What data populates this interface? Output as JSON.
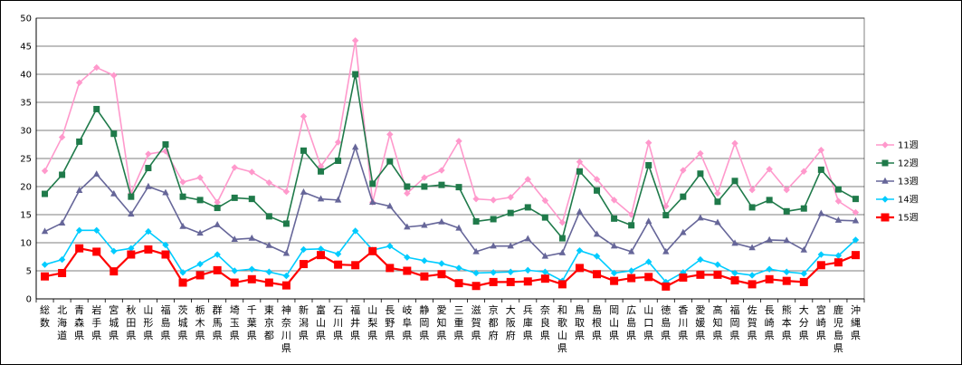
{
  "chart_data": {
    "type": "line",
    "ylim": [
      0,
      50
    ],
    "yticks": [
      0,
      5,
      10,
      15,
      20,
      25,
      30,
      35,
      40,
      45,
      50
    ],
    "grid": "horizontal",
    "legend_position": "right",
    "categories": [
      "総数",
      "北海道",
      "青森県",
      "岩手県",
      "宮城県",
      "秋田県",
      "山形県",
      "福島県",
      "茨城県",
      "栃木県",
      "群馬県",
      "埼玉県",
      "千葉県",
      "東京都",
      "神奈川県",
      "新潟県",
      "富山県",
      "石川県",
      "福井県",
      "山梨県",
      "長野県",
      "岐阜県",
      "静岡県",
      "愛知県",
      "三重県",
      "滋賀県",
      "京都府",
      "大阪府",
      "兵庫県",
      "奈良県",
      "和歌山県",
      "鳥取県",
      "島根県",
      "岡山県",
      "広島県",
      "山口県",
      "徳島県",
      "香川県",
      "愛媛県",
      "高知県",
      "福岡県",
      "佐賀県",
      "長崎県",
      "熊本県",
      "大分県",
      "宮崎県",
      "鹿児島県",
      "沖縄県"
    ],
    "series": [
      {
        "name": "11週",
        "color": "#ff99cc",
        "marker": "diamond",
        "values": [
          22.8,
          28.8,
          38.5,
          41.2,
          39.8,
          18.8,
          25.8,
          26.3,
          20.8,
          21.6,
          17.2,
          23.4,
          22.6,
          20.7,
          19.1,
          32.5,
          23.6,
          27.9,
          46.0,
          17.2,
          29.3,
          18.8,
          21.6,
          22.9,
          28.1,
          17.8,
          17.6,
          18.1,
          21.3,
          17.5,
          13.6,
          24.4,
          21.3,
          17.6,
          15.0,
          27.8,
          16.5,
          22.9,
          25.9,
          18.8,
          27.7,
          19.4,
          23.1,
          19.4,
          22.7,
          26.5,
          17.4,
          15.4
        ]
      },
      {
        "name": "12週",
        "color": "#1f7a4a",
        "marker": "square",
        "values": [
          18.7,
          22.1,
          28.0,
          33.8,
          29.4,
          18.2,
          23.3,
          27.5,
          18.2,
          17.6,
          16.2,
          18.0,
          17.8,
          14.7,
          13.4,
          26.4,
          22.7,
          24.6,
          40.0,
          20.5,
          24.5,
          20.0,
          20.0,
          20.3,
          19.9,
          13.8,
          14.2,
          15.3,
          16.3,
          14.5,
          10.8,
          22.7,
          19.3,
          14.3,
          13.1,
          23.8,
          14.9,
          18.2,
          22.3,
          17.3,
          21.0,
          16.3,
          17.6,
          15.6,
          16.1,
          23.0,
          19.5,
          17.8
        ]
      },
      {
        "name": "13週",
        "color": "#666699",
        "marker": "triangle",
        "values": [
          12.0,
          13.5,
          19.3,
          22.2,
          18.7,
          15.1,
          20.0,
          18.9,
          12.9,
          11.7,
          13.2,
          10.6,
          10.8,
          9.5,
          8.1,
          19.0,
          17.8,
          17.6,
          27.0,
          17.2,
          16.5,
          12.8,
          13.1,
          13.7,
          12.6,
          8.4,
          9.4,
          9.4,
          10.7,
          7.6,
          8.2,
          15.5,
          11.5,
          9.4,
          8.4,
          13.8,
          8.4,
          11.8,
          14.4,
          13.6,
          9.9,
          9.1,
          10.5,
          10.4,
          8.7,
          15.2,
          14.0,
          13.9
        ]
      },
      {
        "name": "14週",
        "color": "#00ccff",
        "marker": "diamond",
        "values": [
          6.1,
          7.0,
          12.2,
          12.2,
          8.5,
          9.0,
          12.0,
          9.6,
          4.7,
          6.2,
          7.9,
          5.0,
          5.3,
          4.8,
          4.1,
          8.8,
          8.9,
          8.0,
          12.1,
          8.7,
          9.4,
          7.4,
          6.8,
          6.3,
          5.5,
          4.6,
          4.7,
          4.8,
          5.1,
          4.8,
          3.2,
          8.6,
          7.6,
          4.6,
          5.0,
          6.6,
          3.0,
          4.7,
          7.0,
          6.1,
          4.6,
          4.2,
          5.3,
          4.8,
          4.5,
          7.9,
          7.7,
          10.5
        ]
      },
      {
        "name": "15週",
        "color": "#ff0000",
        "marker": "square",
        "values": [
          4.0,
          4.6,
          9.0,
          8.4,
          4.9,
          7.9,
          8.8,
          7.9,
          2.9,
          4.2,
          5.1,
          2.9,
          3.5,
          2.9,
          2.4,
          6.2,
          7.8,
          6.1,
          6.0,
          8.5,
          5.5,
          5.0,
          4.0,
          4.4,
          2.8,
          2.3,
          3.0,
          3.0,
          3.1,
          3.6,
          2.6,
          5.5,
          4.4,
          3.2,
          3.7,
          3.9,
          2.2,
          3.8,
          4.3,
          4.3,
          3.3,
          2.6,
          3.5,
          3.2,
          3.0,
          6.0,
          6.5,
          7.8
        ]
      }
    ]
  }
}
